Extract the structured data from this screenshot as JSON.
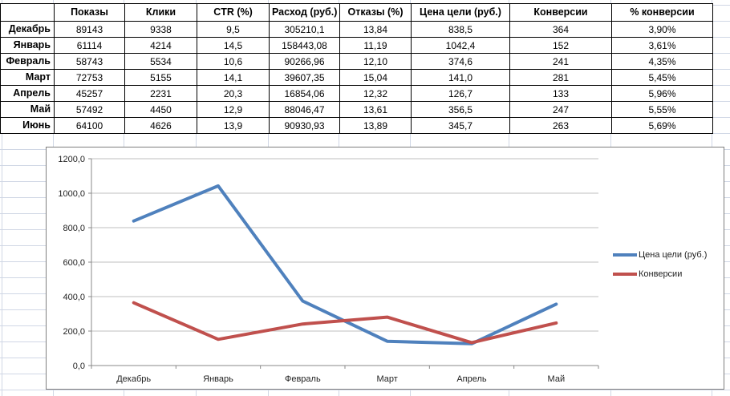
{
  "table": {
    "columns": [
      "Показы",
      "Клики",
      "CTR (%)",
      "Расход (руб.)",
      "Отказы (%)",
      "Цена цели (руб.)",
      "Конверсии",
      "% конверсии"
    ],
    "rows": [
      {
        "label": "Декабрь",
        "values": [
          "89143",
          "9338",
          "9,5",
          "305210,1",
          "13,84",
          "838,5",
          "364",
          "3,90%"
        ]
      },
      {
        "label": "Январь",
        "values": [
          "61114",
          "4214",
          "14,5",
          "158443,08",
          "11,19",
          "1042,4",
          "152",
          "3,61%"
        ]
      },
      {
        "label": "Февраль",
        "values": [
          "58743",
          "5534",
          "10,6",
          "90266,96",
          "12,10",
          "374,6",
          "241",
          "4,35%"
        ]
      },
      {
        "label": "Март",
        "values": [
          "72753",
          "5155",
          "14,1",
          "39607,35",
          "15,04",
          "141,0",
          "281",
          "5,45%"
        ]
      },
      {
        "label": "Апрель",
        "values": [
          "45257",
          "2231",
          "20,3",
          "16854,06",
          "12,32",
          "126,7",
          "133",
          "5,96%"
        ]
      },
      {
        "label": "Май",
        "values": [
          "57492",
          "4450",
          "12,9",
          "88046,47",
          "13,61",
          "356,5",
          "247",
          "5,55%"
        ]
      },
      {
        "label": "Июнь",
        "values": [
          "64100",
          "4626",
          "13,9",
          "90930,93",
          "13,89",
          "345,7",
          "263",
          "5,69%"
        ]
      }
    ]
  },
  "chart_data": {
    "type": "line",
    "categories": [
      "Декабрь",
      "Январь",
      "Февраль",
      "Март",
      "Апрель",
      "Май"
    ],
    "series": [
      {
        "name": "Цена цели (руб.)",
        "color": "#4F81BD",
        "values": [
          838.5,
          1042.4,
          374.6,
          141.0,
          126.7,
          356.5
        ]
      },
      {
        "name": "Конверсии",
        "color": "#C0504D",
        "values": [
          364,
          152,
          241,
          281,
          133,
          247
        ]
      }
    ],
    "title": "",
    "xlabel": "",
    "ylabel": "",
    "ylim": [
      0,
      1200
    ],
    "ytick_step": 200,
    "ytick_labels": [
      "0,0",
      "200,0",
      "400,0",
      "600,0",
      "800,0",
      "1000,0",
      "1200,0"
    ],
    "grid": true,
    "legend_position": "right"
  },
  "colors": {
    "series_price": "#4F81BD",
    "series_conversions": "#C0504D",
    "sheet_gridline": "#D0D7E5",
    "chart_gridline": "#BFBFBF",
    "chart_axis": "#898989",
    "chart_border": "#7F7F7F",
    "table_border": "#000000"
  }
}
